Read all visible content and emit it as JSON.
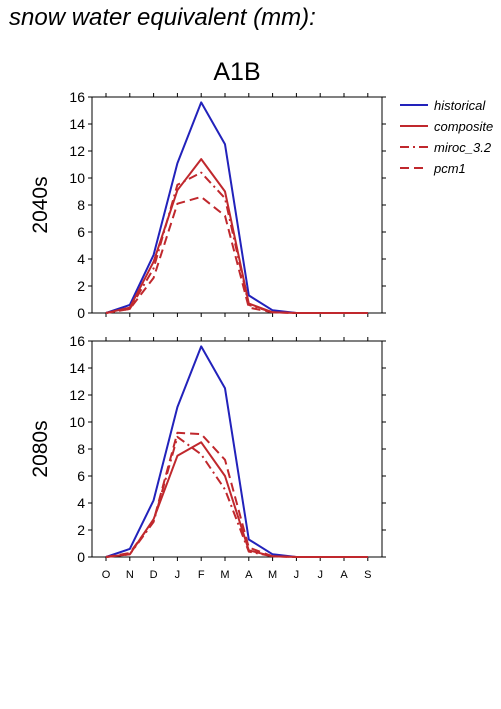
{
  "page": {
    "title": "snow water equivalent (mm):"
  },
  "chart_data": {
    "type": "line",
    "title": "A1B",
    "categories": [
      "O",
      "N",
      "D",
      "J",
      "F",
      "M",
      "A",
      "M",
      "J",
      "J",
      "A",
      "S"
    ],
    "ylim": [
      0,
      16
    ],
    "yticks": [
      0,
      2,
      4,
      6,
      8,
      10,
      12,
      14,
      16
    ],
    "legend": {
      "placement": "right",
      "entries": [
        {
          "name": "historical",
          "color": "#2222bb",
          "dash": "solid"
        },
        {
          "name": "composite",
          "color": "#c0282d",
          "dash": "solid"
        },
        {
          "name": "miroc_3.2",
          "color": "#c0282d",
          "dash": "dash-dot"
        },
        {
          "name": "pcm1",
          "color": "#c0282d",
          "dash": "dash"
        }
      ]
    },
    "panels": [
      {
        "ylabel": "2040s",
        "series": [
          {
            "name": "historical",
            "values": [
              0.0,
              0.6,
              4.3,
              11.1,
              15.6,
              12.5,
              1.3,
              0.2,
              0.0,
              0.0,
              0.0,
              0.0
            ]
          },
          {
            "name": "composite",
            "values": [
              0.0,
              0.4,
              3.8,
              9.1,
              11.4,
              9.0,
              0.7,
              0.05,
              0.0,
              0.0,
              0.0,
              0.0
            ]
          },
          {
            "name": "miroc_3.2",
            "values": [
              0.0,
              0.3,
              3.3,
              9.5,
              10.4,
              8.5,
              0.6,
              0.05,
              0.0,
              0.0,
              0.0,
              0.0
            ]
          },
          {
            "name": "pcm1",
            "values": [
              0.0,
              0.3,
              2.6,
              8.1,
              8.6,
              7.2,
              0.4,
              0.05,
              0.0,
              0.0,
              0.0,
              0.0
            ]
          }
        ]
      },
      {
        "ylabel": "2080s",
        "series": [
          {
            "name": "historical",
            "values": [
              0.0,
              0.6,
              4.2,
              11.1,
              15.6,
              12.5,
              1.3,
              0.2,
              0.0,
              0.0,
              0.0,
              0.0
            ]
          },
          {
            "name": "composite",
            "values": [
              0.0,
              0.2,
              2.8,
              7.5,
              8.5,
              6.0,
              0.5,
              0.05,
              0.0,
              0.0,
              0.0,
              0.0
            ]
          },
          {
            "name": "miroc_3.2",
            "values": [
              0.0,
              0.2,
              2.6,
              8.9,
              7.6,
              5.0,
              0.4,
              0.05,
              0.0,
              0.0,
              0.0,
              0.0
            ]
          },
          {
            "name": "pcm1",
            "values": [
              0.0,
              0.3,
              2.7,
              9.2,
              9.1,
              7.2,
              0.7,
              0.05,
              0.0,
              0.0,
              0.0,
              0.0
            ]
          }
        ]
      }
    ]
  }
}
